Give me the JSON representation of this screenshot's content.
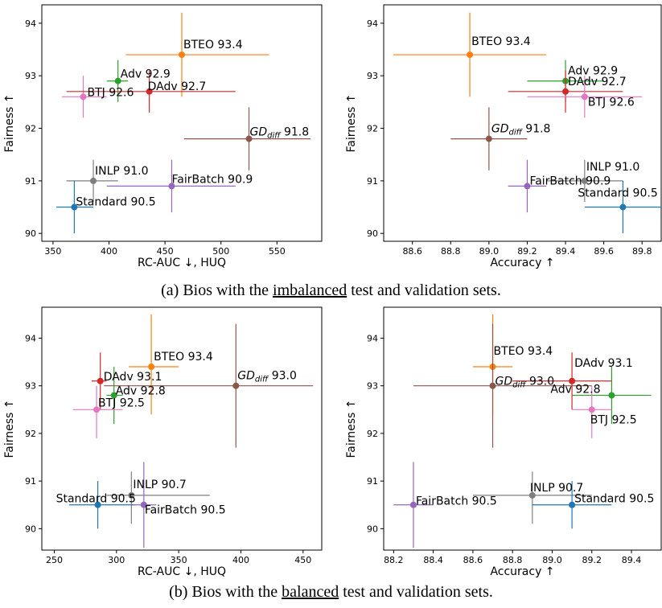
{
  "captions": {
    "a": {
      "prefix": "(a) Bios with the ",
      "underlined": "imbalanced",
      "suffix": " test and validation sets."
    },
    "b": {
      "prefix": "(b) Bios with the ",
      "underlined": "balanced",
      "suffix": " test and validation sets."
    }
  },
  "chart_data": [
    {
      "type": "scatter",
      "panel": "a-left",
      "xlabel": "RC-AUC ↓, HUQ",
      "ylabel": "Fairness ↑",
      "xlim": [
        340,
        590
      ],
      "ylim": [
        89.85,
        94.35
      ],
      "xticks": [
        350,
        400,
        450,
        500,
        550
      ],
      "yticks": [
        90,
        91,
        92,
        93,
        94
      ],
      "points": [
        {
          "name": "BTEO",
          "value": "93.4",
          "color": "#ff7f0e",
          "x": 465,
          "y": 93.4,
          "xerr": [
            415,
            543
          ],
          "yerr": [
            92.6,
            94.2
          ]
        },
        {
          "name": "Adv",
          "value": "92.9",
          "color": "#2ca02c",
          "x": 408,
          "y": 92.9,
          "xerr": [
            398,
            417
          ],
          "yerr": [
            92.5,
            93.3
          ]
        },
        {
          "name": "BTJ",
          "value": "92.6",
          "color": "#e377c2",
          "x": 377,
          "y": 92.6,
          "xerr": [
            358,
            398
          ],
          "yerr": [
            92.2,
            93.0
          ]
        },
        {
          "name": "DAdv",
          "value": "92.7",
          "color": "#d62728",
          "x": 436,
          "y": 92.7,
          "xerr": [
            362,
            513
          ],
          "yerr": [
            92.3,
            93.1
          ]
        },
        {
          "name": "GD",
          "sub": "diff",
          "value": "91.8",
          "color": "#8c564b",
          "x": 525,
          "y": 91.8,
          "xerr": [
            467,
            580
          ],
          "yerr": [
            91.2,
            92.4
          ]
        },
        {
          "name": "INLP",
          "value": "91.0",
          "color": "#7f7f7f",
          "x": 386,
          "y": 91.0,
          "xerr": [
            362,
            408
          ],
          "yerr": [
            90.6,
            91.4
          ]
        },
        {
          "name": "FairBatch",
          "value": "90.9",
          "color": "#9467bd",
          "x": 456,
          "y": 90.9,
          "xerr": [
            398,
            513
          ],
          "yerr": [
            90.4,
            91.4
          ]
        },
        {
          "name": "Standard",
          "value": "90.5",
          "color": "#1f77b4",
          "x": 369,
          "y": 90.5,
          "xerr": [
            353,
            386
          ],
          "yerr": [
            90.0,
            91.0
          ]
        }
      ]
    },
    {
      "type": "scatter",
      "panel": "a-right",
      "xlabel": "Accuracy ↑",
      "ylabel": "Fairness ↑",
      "xlim": [
        88.45,
        89.9
      ],
      "ylim": [
        89.85,
        94.35
      ],
      "xticks": [
        88.6,
        88.8,
        89.0,
        89.2,
        89.4,
        89.6,
        89.8
      ],
      "yticks": [
        90,
        91,
        92,
        93,
        94
      ],
      "points": [
        {
          "name": "BTEO",
          "value": "93.4",
          "color": "#ff7f0e",
          "x": 88.9,
          "y": 93.4,
          "xerr": [
            88.5,
            89.3
          ],
          "yerr": [
            92.6,
            94.2
          ]
        },
        {
          "name": "Adv",
          "value": "92.9",
          "color": "#2ca02c",
          "x": 89.4,
          "y": 92.9,
          "xerr": [
            89.2,
            89.6
          ],
          "yerr": [
            92.5,
            93.3
          ]
        },
        {
          "name": "DAdv",
          "value": "92.7",
          "color": "#d62728",
          "x": 89.4,
          "y": 92.7,
          "xerr": [
            89.1,
            89.7
          ],
          "yerr": [
            92.3,
            93.1
          ]
        },
        {
          "name": "BTJ",
          "value": "92.6",
          "color": "#e377c2",
          "x": 89.5,
          "y": 92.6,
          "xerr": [
            89.2,
            89.8
          ],
          "yerr": [
            92.2,
            93.0
          ]
        },
        {
          "name": "GD",
          "sub": "diff",
          "value": "91.8",
          "color": "#8c564b",
          "x": 89.0,
          "y": 91.8,
          "xerr": [
            88.8,
            89.2
          ],
          "yerr": [
            91.2,
            92.4
          ]
        },
        {
          "name": "INLP",
          "value": "91.0",
          "color": "#7f7f7f",
          "x": 89.5,
          "y": 91.0,
          "xerr": [
            89.3,
            89.7
          ],
          "yerr": [
            90.6,
            91.4
          ]
        },
        {
          "name": "FairBatch",
          "value": "90.9",
          "color": "#9467bd",
          "x": 89.2,
          "y": 90.9,
          "xerr": [
            89.1,
            89.3
          ],
          "yerr": [
            90.4,
            91.4
          ]
        },
        {
          "name": "Standard",
          "value": "90.5",
          "color": "#1f77b4",
          "x": 89.7,
          "y": 90.5,
          "xerr": [
            89.5,
            89.9
          ],
          "yerr": [
            90.0,
            91.0
          ]
        }
      ]
    },
    {
      "type": "scatter",
      "panel": "b-left",
      "xlabel": "RC-AUC ↓, HUQ",
      "ylabel": "Fairness ↑",
      "xlim": [
        240,
        465
      ],
      "ylim": [
        89.55,
        94.65
      ],
      "xticks": [
        250,
        300,
        350,
        400,
        450
      ],
      "yticks": [
        90,
        91,
        92,
        93,
        94
      ],
      "points": [
        {
          "name": "BTEO",
          "value": "93.4",
          "color": "#ff7f0e",
          "x": 328,
          "y": 93.4,
          "xerr": [
            310,
            350
          ],
          "yerr": [
            92.4,
            94.5
          ]
        },
        {
          "name": "DAdv",
          "value": "93.1",
          "color": "#d62728",
          "x": 287,
          "y": 93.1,
          "xerr": [
            280,
            292
          ],
          "yerr": [
            92.5,
            93.7
          ]
        },
        {
          "name": "GD",
          "sub": "diff",
          "value": "93.0",
          "color": "#8c564b",
          "x": 396,
          "y": 93.0,
          "xerr": [
            290,
            458
          ],
          "yerr": [
            91.7,
            94.3
          ]
        },
        {
          "name": "Adv",
          "value": "92.8",
          "color": "#2ca02c",
          "x": 298,
          "y": 92.8,
          "xerr": [
            292,
            305
          ],
          "yerr": [
            92.2,
            93.4
          ]
        },
        {
          "name": "BTJ",
          "value": "92.5",
          "color": "#e377c2",
          "x": 284,
          "y": 92.5,
          "xerr": [
            265,
            305
          ],
          "yerr": [
            91.9,
            93.0
          ]
        },
        {
          "name": "INLP",
          "value": "90.7",
          "color": "#7f7f7f",
          "x": 312,
          "y": 90.7,
          "xerr": [
            292,
            375
          ],
          "yerr": [
            90.1,
            91.2
          ]
        },
        {
          "name": "Standard",
          "value": "90.5",
          "color": "#1f77b4",
          "x": 285,
          "y": 90.5,
          "xerr": [
            262,
            315
          ],
          "yerr": [
            90.0,
            91.0
          ]
        },
        {
          "name": "FairBatch",
          "value": "90.5",
          "color": "#9467bd",
          "x": 322,
          "y": 90.5,
          "xerr": [
            313,
            332
          ],
          "yerr": [
            89.6,
            91.4
          ]
        }
      ]
    },
    {
      "type": "scatter",
      "panel": "b-right",
      "xlabel": "Accuracy ↑",
      "ylabel": "Fairness ↑",
      "xlim": [
        88.15,
        89.55
      ],
      "ylim": [
        89.55,
        94.65
      ],
      "xticks": [
        88.2,
        88.4,
        88.6,
        88.8,
        89.0,
        89.2,
        89.4
      ],
      "yticks": [
        90,
        91,
        92,
        93,
        94
      ],
      "points": [
        {
          "name": "BTEO",
          "value": "93.4",
          "color": "#ff7f0e",
          "x": 88.7,
          "y": 93.4,
          "xerr": [
            88.6,
            88.8
          ],
          "yerr": [
            92.4,
            94.5
          ]
        },
        {
          "name": "DAdv",
          "value": "93.1",
          "color": "#d62728",
          "x": 89.1,
          "y": 93.1,
          "xerr": [
            88.8,
            89.3
          ],
          "yerr": [
            92.5,
            93.7
          ]
        },
        {
          "name": "GD",
          "sub": "diff",
          "value": "93.0",
          "color": "#8c564b",
          "x": 88.7,
          "y": 93.0,
          "xerr": [
            88.3,
            89.2
          ],
          "yerr": [
            91.7,
            94.3
          ]
        },
        {
          "name": "Adv",
          "value": "92.8",
          "color": "#2ca02c",
          "x": 89.3,
          "y": 92.8,
          "xerr": [
            89.1,
            89.5
          ],
          "yerr": [
            92.2,
            93.4
          ]
        },
        {
          "name": "BTJ",
          "value": "92.5",
          "color": "#e377c2",
          "x": 89.2,
          "y": 92.5,
          "xerr": [
            89.1,
            89.3
          ],
          "yerr": [
            91.9,
            93.0
          ]
        },
        {
          "name": "INLP",
          "value": "90.7",
          "color": "#7f7f7f",
          "x": 88.9,
          "y": 90.7,
          "xerr": [
            88.6,
            89.2
          ],
          "yerr": [
            90.1,
            91.2
          ]
        },
        {
          "name": "FairBatch",
          "value": "90.5",
          "color": "#9467bd",
          "x": 88.3,
          "y": 90.5,
          "xerr": [
            88.2,
            88.4
          ],
          "yerr": [
            89.6,
            91.4
          ]
        },
        {
          "name": "Standard",
          "value": "90.5",
          "color": "#1f77b4",
          "x": 89.1,
          "y": 90.5,
          "xerr": [
            88.9,
            89.3
          ],
          "yerr": [
            90.0,
            91.0
          ]
        }
      ]
    }
  ]
}
